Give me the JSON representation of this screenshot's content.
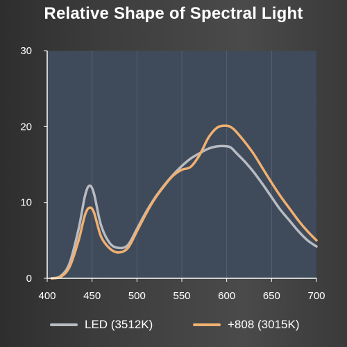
{
  "chart_data": {
    "type": "line",
    "title": "Relative Shape of Spectral Light",
    "xlabel": "",
    "ylabel": "",
    "xlim": [
      400,
      700
    ],
    "ylim": [
      0,
      30
    ],
    "x_ticks": [
      "400",
      "450",
      "500",
      "550",
      "600",
      "650",
      "700"
    ],
    "y_ticks": [
      "0",
      "10",
      "20",
      "30"
    ],
    "grid": "vertical",
    "legend_position": "bottom",
    "colors": {
      "plot_bg": "#3f4a5a",
      "grid": "#56606f"
    },
    "x": [
      405,
      415,
      425,
      435,
      442,
      447,
      452,
      460,
      470,
      480,
      490,
      500,
      510,
      520,
      530,
      540,
      550,
      560,
      570,
      580,
      590,
      600,
      605,
      610,
      620,
      630,
      640,
      650,
      660,
      670,
      680,
      690,
      700
    ],
    "series": [
      {
        "name": "LED (3512K)",
        "color": "#b8bcc2",
        "values": [
          0,
          0.3,
          2.0,
          6.5,
          10.8,
          12.2,
          11.2,
          7.0,
          4.6,
          4.0,
          4.4,
          6.5,
          8.7,
          10.6,
          12.2,
          13.6,
          14.8,
          15.8,
          16.5,
          17.1,
          17.4,
          17.4,
          17.2,
          16.6,
          15.4,
          14.0,
          12.4,
          10.7,
          9.0,
          7.6,
          6.2,
          5.0,
          4.2
        ]
      },
      {
        "name": "+808 (3015K)",
        "color": "#f0b070",
        "values": [
          0,
          0.2,
          1.5,
          5.0,
          8.3,
          9.3,
          8.7,
          5.5,
          3.9,
          3.4,
          4.0,
          6.2,
          8.5,
          10.5,
          12.1,
          13.5,
          14.3,
          14.7,
          16.3,
          18.6,
          19.9,
          20.1,
          19.9,
          19.4,
          18.0,
          16.4,
          14.5,
          12.6,
          10.8,
          9.2,
          7.6,
          6.2,
          5.0
        ]
      }
    ]
  }
}
